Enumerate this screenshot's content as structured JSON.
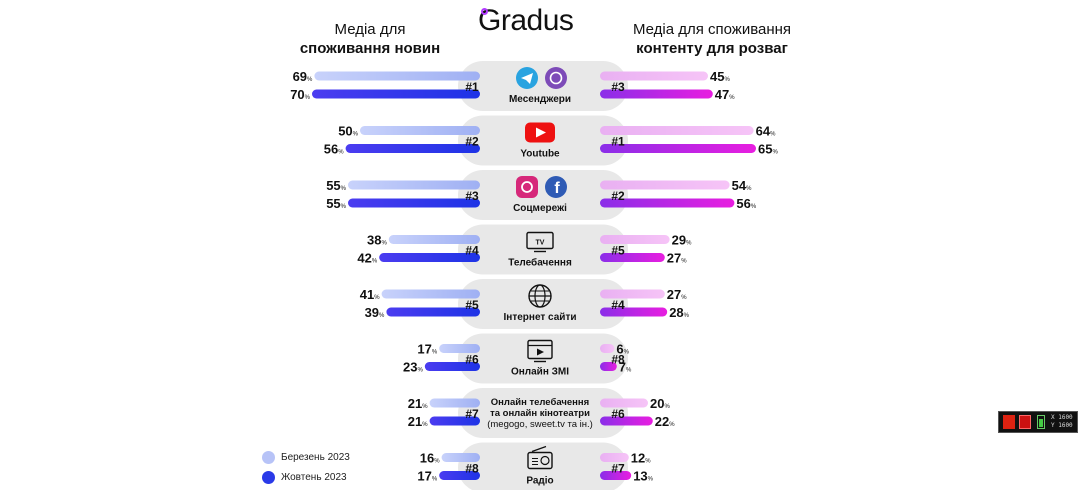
{
  "header": {
    "left_line1": "Медіа для",
    "left_line2": "споживання новин",
    "right_line1": "Медіа для споживання",
    "right_line2": "контенту для розваг",
    "logo": "Gradus"
  },
  "legend": [
    {
      "label": "Березень 2023",
      "color": "#b7c3f7"
    },
    {
      "label": "Жовтень 2023",
      "color": "#2a3ae8"
    }
  ],
  "widget": {
    "x_label": "X 1600",
    "y_label": "Y 1600"
  },
  "chart_data": {
    "type": "bar",
    "categories": [
      "Месенджери",
      "Youtube",
      "Соцмережі",
      "Телебачення",
      "Інтернет сайти",
      "Онлайн ЗМІ",
      "Онлайн телебачення та онлайн кінотеатри (megogo, sweet.tv та ін.)",
      "Радіо"
    ],
    "category_lines": [
      [
        "Месенджери"
      ],
      [
        "Youtube"
      ],
      [
        "Соцмережі"
      ],
      [
        "Телебачення"
      ],
      [
        "Інтернет сайти"
      ],
      [
        "Онлайн ЗМІ"
      ],
      [
        "Онлайн телебачення",
        "та онлайн кінотеатри",
        "(megogo, sweet.tv та ін.)"
      ],
      [
        "Радіо"
      ]
    ],
    "icons": [
      [
        "telegram-icon",
        "viber-icon"
      ],
      [
        "youtube-icon"
      ],
      [
        "instagram-icon",
        "facebook-icon"
      ],
      [
        "tv-icon"
      ],
      [
        "globe-icon"
      ],
      [
        "online-media-icon"
      ],
      [],
      [
        "radio-icon"
      ]
    ],
    "news": {
      "ranks": [
        "#1",
        "#2",
        "#3",
        "#4",
        "#5",
        "#6",
        "#7",
        "#8"
      ],
      "series": [
        {
          "name": "Березень 2023",
          "values": [
            69,
            50,
            55,
            38,
            41,
            17,
            21,
            16
          ]
        },
        {
          "name": "Жовтень 2023",
          "values": [
            70,
            56,
            55,
            42,
            39,
            23,
            21,
            17
          ]
        }
      ]
    },
    "entertainment": {
      "ranks": [
        "#3",
        "#1",
        "#2",
        "#5",
        "#4",
        "#8",
        "#6",
        "#7"
      ],
      "series": [
        {
          "name": "Березень 2023",
          "values": [
            45,
            64,
            54,
            29,
            27,
            6,
            20,
            12
          ]
        },
        {
          "name": "Жовтень 2023",
          "values": [
            47,
            65,
            56,
            27,
            28,
            7,
            22,
            13
          ]
        }
      ]
    },
    "unit": "%",
    "tv_label": "TV",
    "colors": {
      "news_light": "#b7c3f7",
      "news_dark": "#2a3ae8",
      "ent_light": "#f2b6f5",
      "ent_dark": "#d21ee6",
      "pill": "#e8e8e8"
    }
  }
}
